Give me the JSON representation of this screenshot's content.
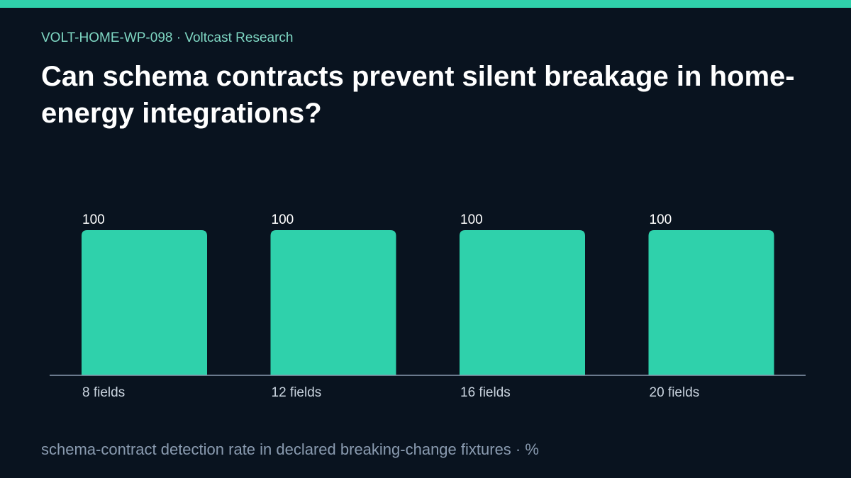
{
  "header": {
    "eyebrow": "VOLT-HOME-WP-098 · Voltcast Research",
    "title": "Can schema contracts prevent silent breakage in home-energy integrations?"
  },
  "caption": "schema-contract detection rate in declared breaking-change fixtures · %",
  "colors": {
    "accent": "#2fd1ab",
    "background": "#09131f",
    "axis": "#8a9bb0"
  },
  "chart_data": {
    "type": "bar",
    "categories": [
      "8 fields",
      "12 fields",
      "16 fields",
      "20 fields"
    ],
    "values": [
      100,
      100,
      100,
      100
    ],
    "data_labels": [
      "100",
      "100",
      "100",
      "100"
    ],
    "ylim": [
      0,
      100
    ],
    "grid": false
  }
}
